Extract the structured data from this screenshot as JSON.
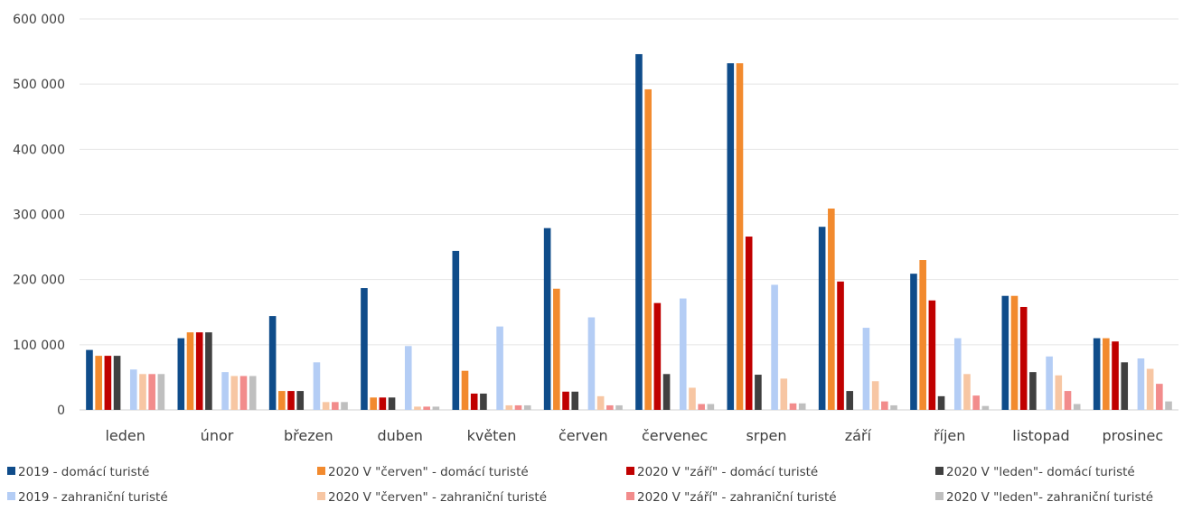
{
  "chart_data": {
    "type": "bar",
    "categories": [
      "leden",
      "únor",
      "březen",
      "duben",
      "květen",
      "červen",
      "červenec",
      "srpen",
      "září",
      "říjen",
      "listopad",
      "prosinec"
    ],
    "ylim": [
      0,
      600000
    ],
    "yticks": [
      0,
      100000,
      200000,
      300000,
      400000,
      500000,
      600000
    ],
    "ytick_labels": [
      "0",
      "100 000",
      "200 000",
      "300 000",
      "400 000",
      "500 000",
      "600 000"
    ],
    "grid": true,
    "legend_position": "bottom",
    "series": [
      {
        "name": "2019 - domácí turisté",
        "color": "#0F4C8A",
        "values": [
          92000,
          110000,
          144000,
          187000,
          244000,
          279000,
          546000,
          532000,
          281000,
          209000,
          175000,
          110000
        ]
      },
      {
        "name": "2020 V \"červen\" - domácí turisté",
        "color": "#F28A2E",
        "values": [
          83000,
          119000,
          29000,
          19000,
          60000,
          186000,
          492000,
          532000,
          309000,
          230000,
          175000,
          110000
        ]
      },
      {
        "name": "2020 V \"září\" - domácí turisté",
        "color": "#C00000",
        "values": [
          83000,
          119000,
          29000,
          19000,
          25000,
          28000,
          164000,
          266000,
          197000,
          168000,
          158000,
          105000
        ]
      },
      {
        "name": "2020 V \"leden\"- domácí turisté",
        "color": "#404040",
        "values": [
          83000,
          119000,
          29000,
          19000,
          25000,
          28000,
          55000,
          54000,
          29000,
          21000,
          58000,
          73000
        ]
      },
      {
        "name": "2019 - zahraniční turisté",
        "color": "#B4CDF5",
        "values": [
          62000,
          58000,
          73000,
          98000,
          128000,
          142000,
          171000,
          192000,
          126000,
          110000,
          82000,
          79000
        ]
      },
      {
        "name": "2020 V \"červen\" - zahraniční turisté",
        "color": "#F7C6A3",
        "values": [
          55000,
          52000,
          12000,
          5000,
          7000,
          21000,
          34000,
          48000,
          44000,
          55000,
          53000,
          63000
        ]
      },
      {
        "name": "2020 V \"září\" - zahraniční turisté",
        "color": "#F28C8C",
        "values": [
          55000,
          52000,
          12000,
          5000,
          7000,
          7000,
          9000,
          10000,
          13000,
          22000,
          29000,
          40000
        ]
      },
      {
        "name": "2020 V \"leden\"- zahraniční turisté",
        "color": "#BFBFBF",
        "values": [
          55000,
          52000,
          12000,
          5000,
          7000,
          7000,
          9000,
          10000,
          7000,
          6000,
          9000,
          13000
        ]
      }
    ]
  }
}
